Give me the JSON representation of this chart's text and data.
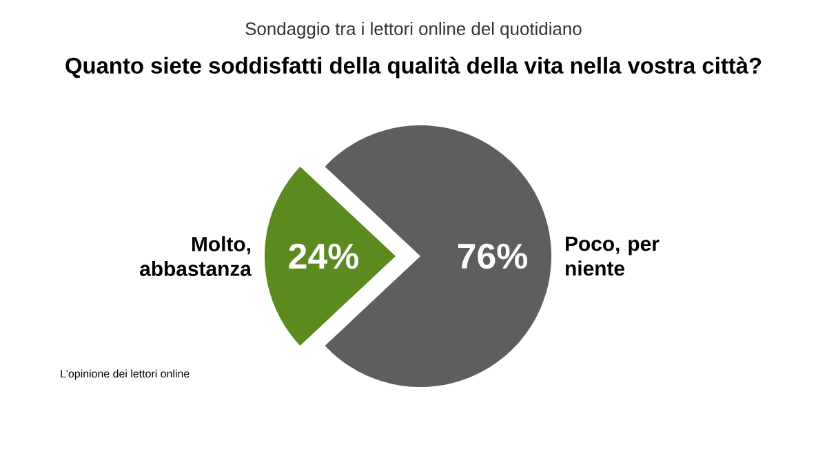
{
  "chart_data": {
    "type": "pie",
    "subtitle": "Sondaggio tra i lettori online del quotidiano",
    "title": "Quanto siete soddisfatti della qualità della vita nella vostra città?",
    "categories": [
      "Molto, abbastanza",
      "Poco, per niente"
    ],
    "values": [
      24,
      76
    ],
    "colors": [
      "#5b8a1f",
      "#5e5e5e"
    ],
    "value_labels": [
      "24%",
      "76%"
    ],
    "legend": false,
    "annotations": [
      "L'opinione dei lettori online"
    ]
  }
}
